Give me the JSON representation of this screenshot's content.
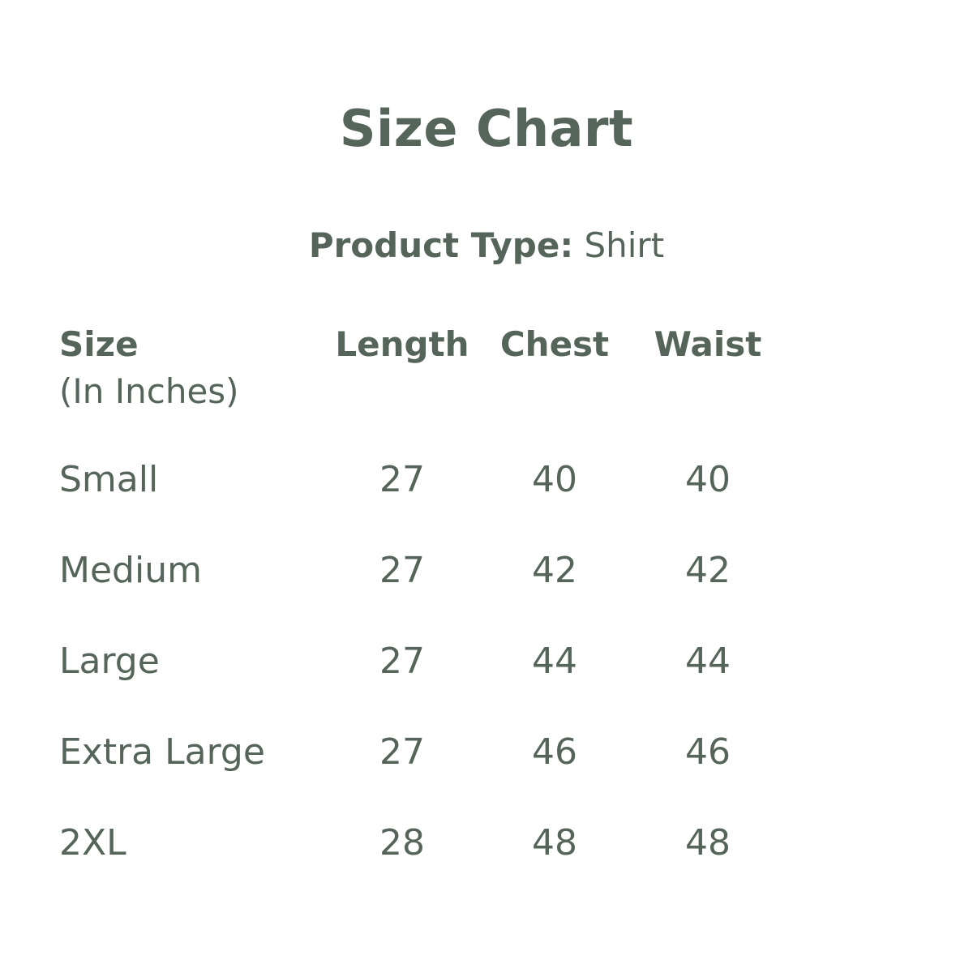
{
  "title": "Size Chart",
  "product_type_label": "Product Type:",
  "product_type_value": "Shirt",
  "colors": {
    "text": "#56655a",
    "background": "#ffffff"
  },
  "table": {
    "headers": [
      "Size",
      "Length",
      "Chest",
      "Waist"
    ],
    "unit_note": "(In Inches)",
    "rows": [
      [
        "Small",
        "27",
        "40",
        "40"
      ],
      [
        "Medium",
        "27",
        "42",
        "42"
      ],
      [
        "Large",
        "27",
        "44",
        "44"
      ],
      [
        "Extra Large",
        "27",
        "46",
        "46"
      ],
      [
        "2XL",
        "28",
        "48",
        "48"
      ]
    ]
  }
}
